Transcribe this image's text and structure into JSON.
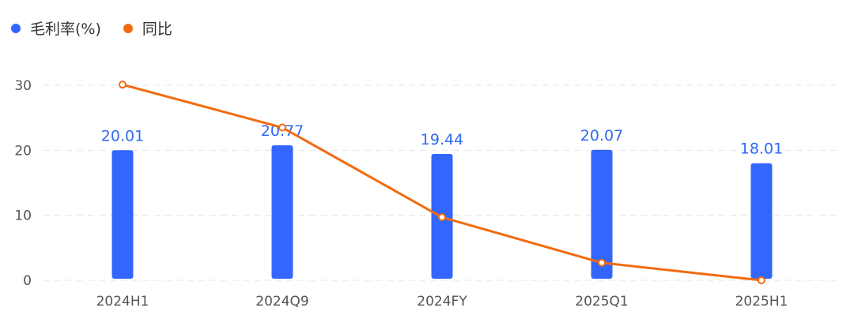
{
  "legend": {
    "bar_label": "毛利率(%)",
    "line_label": "同比"
  },
  "colors": {
    "bar": "#3366ff",
    "line": "#f26b0f",
    "grid": "#e6e6e6",
    "label": "#2f6bf0"
  },
  "chart_data": {
    "type": "bar",
    "categories": [
      "2024H1",
      "2024Q9",
      "2024FY",
      "2025Q1",
      "2025H1"
    ],
    "series": [
      {
        "name": "毛利率(%)",
        "type": "bar",
        "values": [
          20.01,
          20.77,
          19.44,
          20.07,
          18.01
        ]
      },
      {
        "name": "同比",
        "type": "line",
        "values": [
          30.1,
          23.5,
          9.7,
          2.7,
          0.0
        ]
      }
    ],
    "data_labels": [
      "20.01",
      "20.77",
      "19.44",
      "20.07",
      "18.01"
    ],
    "yticks": [
      "0",
      "10",
      "20",
      "30"
    ],
    "ylim": [
      0,
      30
    ],
    "grid": true,
    "legend_position": "top-left"
  }
}
